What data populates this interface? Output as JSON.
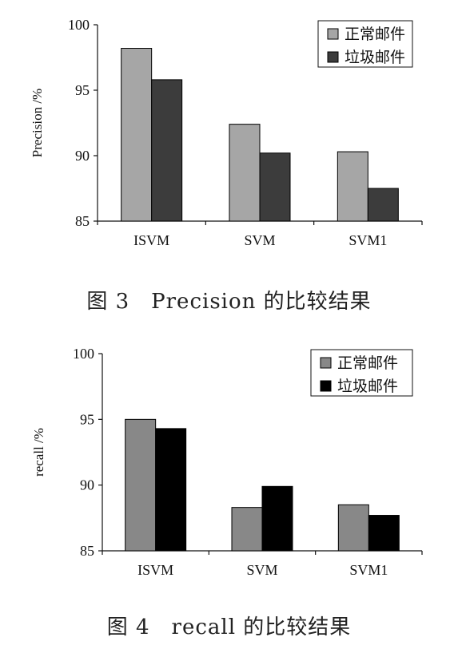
{
  "chart_data": [
    {
      "type": "bar",
      "categories": [
        "ISVM",
        "SVM",
        "SVM1"
      ],
      "series": [
        {
          "name": "正常邮件",
          "values": [
            98.2,
            92.4,
            90.3
          ],
          "color": "#a6a6a6"
        },
        {
          "name": "垃圾邮件",
          "values": [
            95.8,
            90.2,
            87.5
          ],
          "color": "#3c3c3c"
        }
      ],
      "ylabel": "Precision /%",
      "ylim": [
        85,
        100
      ],
      "yticks": [
        85,
        90,
        95,
        100
      ],
      "legend_position": "top-right",
      "grid": false,
      "caption": "图 3　Precision 的比较结果"
    },
    {
      "type": "bar",
      "categories": [
        "ISVM",
        "SVM",
        "SVM1"
      ],
      "series": [
        {
          "name": "正常邮件",
          "values": [
            95.0,
            88.3,
            88.5
          ],
          "color": "#888888"
        },
        {
          "name": "垃圾邮件",
          "values": [
            94.3,
            89.9,
            87.7
          ],
          "color": "#000000"
        }
      ],
      "ylabel": "recall /%",
      "ylim": [
        85,
        100
      ],
      "yticks": [
        85,
        90,
        95,
        100
      ],
      "legend_position": "top-right",
      "grid": false,
      "caption": "图 4　recall 的比较结果"
    }
  ]
}
